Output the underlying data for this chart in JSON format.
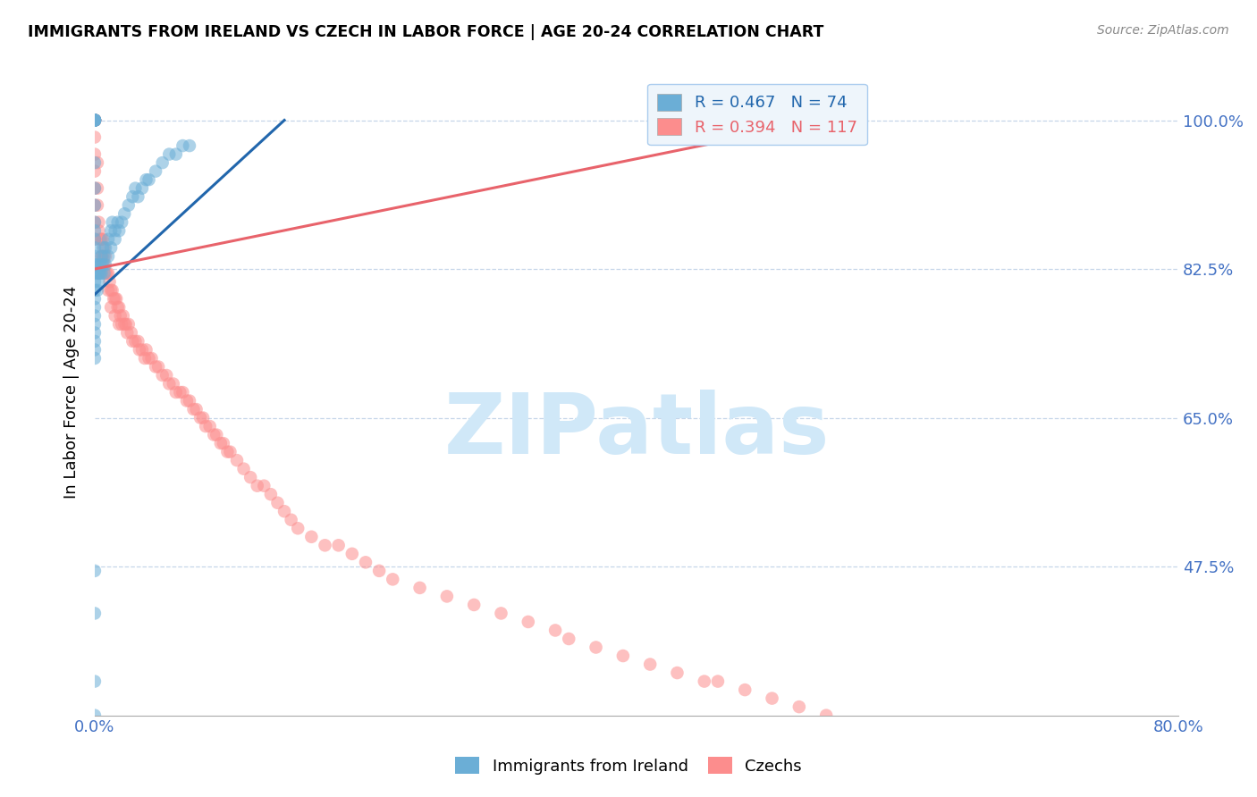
{
  "title": "IMMIGRANTS FROM IRELAND VS CZECH IN LABOR FORCE | AGE 20-24 CORRELATION CHART",
  "source": "Source: ZipAtlas.com",
  "ylabel": "In Labor Force | Age 20-24",
  "xlim": [
    0.0,
    0.8
  ],
  "ylim": [
    0.3,
    1.06
  ],
  "xticks": [
    0.0,
    0.1,
    0.2,
    0.3,
    0.4,
    0.5,
    0.6,
    0.7,
    0.8
  ],
  "xticklabels": [
    "0.0%",
    "",
    "",
    "",
    "",
    "",
    "",
    "",
    "80.0%"
  ],
  "ytick_positions": [
    0.475,
    0.65,
    0.825,
    1.0
  ],
  "ytick_labels": [
    "47.5%",
    "65.0%",
    "82.5%",
    "100.0%"
  ],
  "ireland_R": 0.467,
  "ireland_N": 74,
  "czech_R": 0.394,
  "czech_N": 117,
  "ireland_color": "#6baed6",
  "czech_color": "#fc8d8d",
  "ireland_line_color": "#2166ac",
  "czech_line_color": "#e8636b",
  "watermark_color": "#d0e8f8",
  "ireland_x": [
    0.0,
    0.0,
    0.0,
    0.0,
    0.0,
    0.0,
    0.0,
    0.0,
    0.0,
    0.0,
    0.0,
    0.0,
    0.0,
    0.0,
    0.0,
    0.0,
    0.0,
    0.0,
    0.0,
    0.0,
    0.0,
    0.0,
    0.0,
    0.0,
    0.0,
    0.0,
    0.0,
    0.0,
    0.0,
    0.0,
    0.002,
    0.002,
    0.002,
    0.003,
    0.003,
    0.004,
    0.004,
    0.005,
    0.005,
    0.005,
    0.006,
    0.006,
    0.007,
    0.007,
    0.008,
    0.008,
    0.01,
    0.01,
    0.012,
    0.012,
    0.013,
    0.015,
    0.015,
    0.017,
    0.018,
    0.02,
    0.022,
    0.025,
    0.028,
    0.03,
    0.032,
    0.035,
    0.038,
    0.04,
    0.045,
    0.05,
    0.055,
    0.06,
    0.065,
    0.07,
    0.0,
    0.0,
    0.0,
    0.0
  ],
  "ireland_y": [
    1.0,
    1.0,
    1.0,
    1.0,
    1.0,
    1.0,
    1.0,
    1.0,
    1.0,
    1.0,
    0.95,
    0.92,
    0.9,
    0.88,
    0.87,
    0.86,
    0.85,
    0.84,
    0.83,
    0.82,
    0.81,
    0.8,
    0.79,
    0.78,
    0.77,
    0.76,
    0.75,
    0.74,
    0.73,
    0.72,
    0.83,
    0.82,
    0.8,
    0.82,
    0.81,
    0.83,
    0.82,
    0.84,
    0.83,
    0.82,
    0.85,
    0.83,
    0.84,
    0.82,
    0.85,
    0.83,
    0.86,
    0.84,
    0.87,
    0.85,
    0.88,
    0.87,
    0.86,
    0.88,
    0.87,
    0.88,
    0.89,
    0.9,
    0.91,
    0.92,
    0.91,
    0.92,
    0.93,
    0.93,
    0.94,
    0.95,
    0.96,
    0.96,
    0.97,
    0.97,
    0.47,
    0.42,
    0.34,
    0.3
  ],
  "czech_x": [
    0.0,
    0.0,
    0.0,
    0.0,
    0.0,
    0.0,
    0.0,
    0.0,
    0.0,
    0.0,
    0.0,
    0.0,
    0.0,
    0.0,
    0.0,
    0.002,
    0.002,
    0.002,
    0.003,
    0.003,
    0.004,
    0.005,
    0.005,
    0.006,
    0.006,
    0.007,
    0.007,
    0.008,
    0.008,
    0.009,
    0.01,
    0.01,
    0.011,
    0.012,
    0.012,
    0.013,
    0.014,
    0.015,
    0.015,
    0.016,
    0.017,
    0.018,
    0.018,
    0.019,
    0.02,
    0.021,
    0.022,
    0.023,
    0.024,
    0.025,
    0.027,
    0.028,
    0.03,
    0.032,
    0.033,
    0.035,
    0.037,
    0.038,
    0.04,
    0.042,
    0.045,
    0.047,
    0.05,
    0.053,
    0.055,
    0.058,
    0.06,
    0.063,
    0.065,
    0.068,
    0.07,
    0.073,
    0.075,
    0.078,
    0.08,
    0.082,
    0.085,
    0.088,
    0.09,
    0.093,
    0.095,
    0.098,
    0.1,
    0.105,
    0.11,
    0.115,
    0.12,
    0.125,
    0.13,
    0.135,
    0.14,
    0.145,
    0.15,
    0.16,
    0.17,
    0.18,
    0.19,
    0.2,
    0.21,
    0.22,
    0.24,
    0.26,
    0.28,
    0.3,
    0.32,
    0.34,
    0.35,
    0.37,
    0.39,
    0.41,
    0.43,
    0.45,
    0.46,
    0.48,
    0.5,
    0.52,
    0.54
  ],
  "czech_y": [
    1.0,
    1.0,
    1.0,
    1.0,
    1.0,
    1.0,
    1.0,
    1.0,
    0.98,
    0.96,
    0.94,
    0.92,
    0.9,
    0.88,
    0.86,
    0.95,
    0.92,
    0.9,
    0.88,
    0.87,
    0.86,
    0.86,
    0.84,
    0.86,
    0.84,
    0.85,
    0.83,
    0.84,
    0.82,
    0.82,
    0.82,
    0.8,
    0.81,
    0.8,
    0.78,
    0.8,
    0.79,
    0.79,
    0.77,
    0.79,
    0.78,
    0.78,
    0.76,
    0.77,
    0.76,
    0.77,
    0.76,
    0.76,
    0.75,
    0.76,
    0.75,
    0.74,
    0.74,
    0.74,
    0.73,
    0.73,
    0.72,
    0.73,
    0.72,
    0.72,
    0.71,
    0.71,
    0.7,
    0.7,
    0.69,
    0.69,
    0.68,
    0.68,
    0.68,
    0.67,
    0.67,
    0.66,
    0.66,
    0.65,
    0.65,
    0.64,
    0.64,
    0.63,
    0.63,
    0.62,
    0.62,
    0.61,
    0.61,
    0.6,
    0.59,
    0.58,
    0.57,
    0.57,
    0.56,
    0.55,
    0.54,
    0.53,
    0.52,
    0.51,
    0.5,
    0.5,
    0.49,
    0.48,
    0.47,
    0.46,
    0.45,
    0.44,
    0.43,
    0.42,
    0.41,
    0.4,
    0.39,
    0.38,
    0.37,
    0.36,
    0.35,
    0.34,
    0.34,
    0.33,
    0.32,
    0.31,
    0.3
  ],
  "ireland_line_x": [
    0.0,
    0.14
  ],
  "ireland_line_y": [
    0.795,
    1.0
  ],
  "czech_line_x": [
    0.0,
    0.54
  ],
  "czech_line_y": [
    0.825,
    1.0
  ]
}
